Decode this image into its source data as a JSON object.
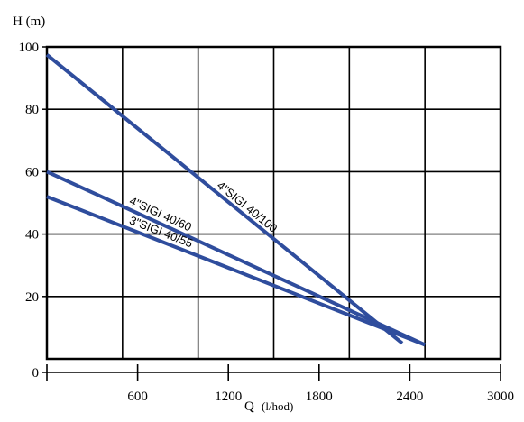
{
  "chart_data": {
    "type": "line",
    "ylabel": "H (m)",
    "xlabel": "Q",
    "xlabel_unit": "(l/hod)",
    "xlim": [
      0,
      3000
    ],
    "ylim": [
      0,
      100
    ],
    "x_ticks": [
      600,
      1200,
      1800,
      2400,
      3000
    ],
    "y_ticks": [
      100,
      80,
      60,
      40,
      20,
      0
    ],
    "grid": true,
    "color": "#2f4d9d",
    "series": [
      {
        "name": "4\"SIGI 40/100",
        "x": [
          0,
          2350
        ],
        "y": [
          97.5,
          5
        ]
      },
      {
        "name": "4\"SIGI 40/60",
        "x": [
          0,
          2500
        ],
        "y": [
          60,
          4.5
        ]
      },
      {
        "name": "3\"SIGI 40/55",
        "x": [
          0,
          2500
        ],
        "y": [
          52,
          4.5
        ]
      }
    ]
  }
}
